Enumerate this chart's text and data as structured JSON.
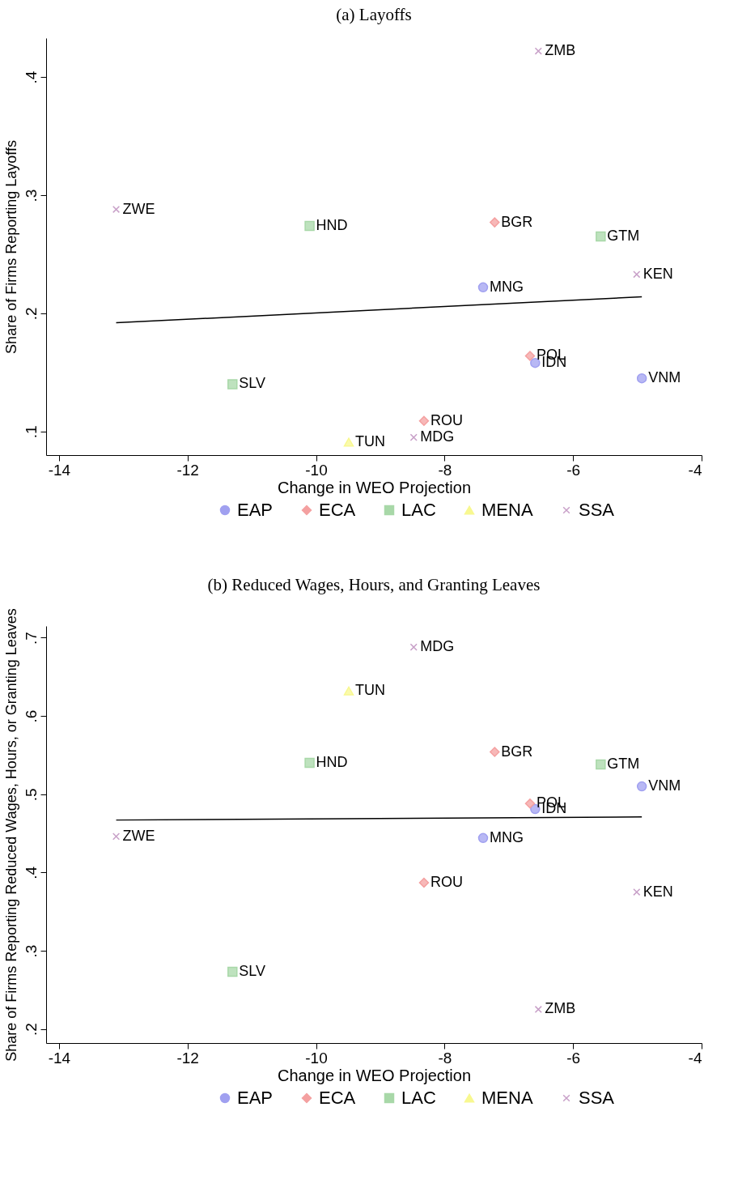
{
  "chart_data": [
    {
      "type": "scatter",
      "title": "(a)  Layoffs",
      "xlabel": "Change in WEO Projection",
      "ylabel": "Share of Firms Reporting Layoffs",
      "xlim": [
        -14.2,
        -4
      ],
      "ylim": [
        0.08,
        0.433
      ],
      "xticks": [
        -14,
        -12,
        -10,
        -8,
        -6,
        -4
      ],
      "yticks": [
        {
          "value": 0.1,
          "label": ".1"
        },
        {
          "value": 0.2,
          "label": ".2"
        },
        {
          "value": 0.3,
          "label": ".3"
        },
        {
          "value": 0.4,
          "label": ".4"
        }
      ],
      "grid": false,
      "legend": "bottom",
      "series": [
        {
          "name": "EAP",
          "color": "#a0a0f0",
          "marker": "circle",
          "x": [
            -7.4,
            -6.59,
            -4.93
          ],
          "values": [
            0.222,
            0.158,
            0.145
          ],
          "value_labels": [
            "MNG",
            "IDN",
            "VNM"
          ]
        },
        {
          "name": "ECA",
          "color": "#f4a0a0",
          "marker": "diamond",
          "x": [
            -7.22,
            -6.67,
            -8.32
          ],
          "values": [
            0.277,
            0.164,
            0.109
          ],
          "value_labels": [
            "BGR",
            "POL",
            "ROU"
          ]
        },
        {
          "name": "LAC",
          "color": "#a8d8a8",
          "marker": "square",
          "x": [
            -10.1,
            -5.57,
            -11.3
          ],
          "values": [
            0.274,
            0.265,
            0.14
          ],
          "value_labels": [
            "HND",
            "GTM",
            "SLV"
          ]
        },
        {
          "name": "MENA",
          "color": "#f8f890",
          "marker": "triangle",
          "x": [
            -9.49
          ],
          "values": [
            0.091
          ],
          "value_labels": [
            "TUN"
          ]
        },
        {
          "name": "SSA",
          "color": "#c8a0c8",
          "marker": "cross",
          "x": [
            -6.54,
            -13.11,
            -5.01,
            -8.48
          ],
          "values": [
            0.422,
            0.288,
            0.233,
            0.095
          ],
          "value_labels": [
            "ZMB",
            "ZWE",
            "KEN",
            "MDG"
          ]
        },
        {
          "type": "line",
          "color": "#000000",
          "line_style": "solid",
          "x": [
            -13.11,
            -4.93
          ],
          "values": [
            0.192,
            0.214
          ]
        }
      ]
    },
    {
      "type": "scatter",
      "title": "(b)  Reduced Wages, Hours, and Granting Leaves",
      "xlabel": "Change in WEO Projection",
      "ylabel": "Share of Firms Reporting Reduced Wages, Hours, or Granting Leaves",
      "xlim": [
        -14.2,
        -4
      ],
      "ylim": [
        0.182,
        0.715
      ],
      "xticks": [
        -14,
        -12,
        -10,
        -8,
        -6,
        -4
      ],
      "yticks": [
        {
          "value": 0.2,
          "label": ".2"
        },
        {
          "value": 0.3,
          "label": ".3"
        },
        {
          "value": 0.4,
          "label": ".4"
        },
        {
          "value": 0.5,
          "label": ".5"
        },
        {
          "value": 0.6,
          "label": ".6"
        },
        {
          "value": 0.7,
          "label": ".7"
        }
      ],
      "grid": false,
      "legend": "bottom",
      "series": [
        {
          "name": "EAP",
          "color": "#a0a0f0",
          "marker": "circle",
          "x": [
            -4.93,
            -6.59,
            -7.4
          ],
          "values": [
            0.51,
            0.481,
            0.444
          ],
          "value_labels": [
            "VNM",
            "IDN",
            "MNG"
          ]
        },
        {
          "name": "ECA",
          "color": "#f4a0a0",
          "marker": "diamond",
          "x": [
            -7.22,
            -6.67,
            -8.32
          ],
          "values": [
            0.554,
            0.488,
            0.387
          ],
          "value_labels": [
            "BGR",
            "POL",
            "ROU"
          ]
        },
        {
          "name": "LAC",
          "color": "#a8d8a8",
          "marker": "square",
          "x": [
            -10.1,
            -5.57,
            -11.3
          ],
          "values": [
            0.54,
            0.538,
            0.273
          ],
          "value_labels": [
            "HND",
            "GTM",
            "SLV"
          ]
        },
        {
          "name": "MENA",
          "color": "#f8f890",
          "marker": "triangle",
          "x": [
            -9.49
          ],
          "values": [
            0.632
          ],
          "value_labels": [
            "TUN"
          ]
        },
        {
          "name": "SSA",
          "color": "#c8a0c8",
          "marker": "cross",
          "x": [
            -8.48,
            -13.11,
            -5.01,
            -6.54
          ],
          "values": [
            0.688,
            0.446,
            0.375,
            0.225
          ],
          "value_labels": [
            "MDG",
            "ZWE",
            "KEN",
            "ZMB"
          ]
        },
        {
          "type": "line",
          "color": "#000000",
          "line_style": "solid",
          "x": [
            -13.11,
            -4.93
          ],
          "values": [
            0.467,
            0.471
          ]
        }
      ]
    }
  ]
}
